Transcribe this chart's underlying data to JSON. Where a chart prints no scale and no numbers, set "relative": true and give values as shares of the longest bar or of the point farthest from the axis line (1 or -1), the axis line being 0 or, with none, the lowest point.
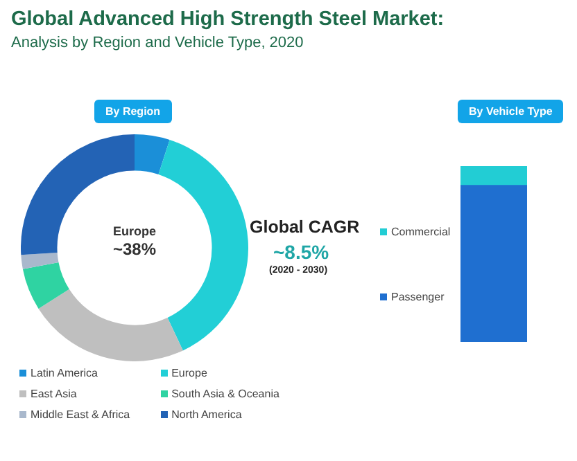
{
  "chart_data": [
    {
      "type": "donut",
      "title": "Global Advanced High Strength Steel Market:",
      "subtitle": "Analysis by Region and Vehicle Type, 2020",
      "categories": [
        "Latin America",
        "Europe",
        "East Asia",
        "South Asia & Oceania",
        "Middle East & Africa",
        "North America"
      ],
      "values": [
        5,
        38,
        23,
        6,
        2,
        26
      ],
      "colors": [
        "#1b8fd8",
        "#22cfd6",
        "#bfbfbf",
        "#2fd3a2",
        "#a9b8cc",
        "#2363b5"
      ],
      "legend": "bottom",
      "annotations": [
        "By Region",
        "Europe",
        "~38%",
        "Global CAGR",
        "~8.5%",
        "(2020 - 2030)"
      ]
    },
    {
      "type": "bar",
      "title": "By Vehicle Type",
      "stacked": true,
      "relative": true,
      "categories": [
        null
      ],
      "legend": "left",
      "series": [
        {
          "name": "Passenger",
          "color": "#1f6fd0",
          "values": [
            0.89
          ]
        },
        {
          "name": "Commercial",
          "color": "#22cdd4",
          "values": [
            0.11
          ]
        }
      ]
    }
  ]
}
